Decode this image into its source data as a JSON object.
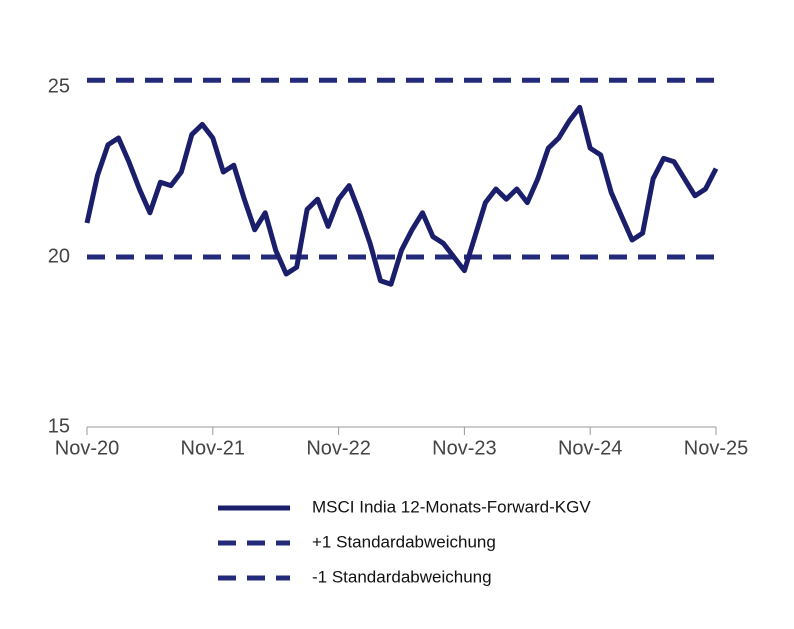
{
  "chart_data": {
    "type": "line",
    "categories": [
      "Nov-20",
      null,
      null,
      null,
      null,
      null,
      null,
      null,
      null,
      null,
      null,
      null,
      "Nov-21",
      null,
      null,
      null,
      null,
      null,
      null,
      null,
      null,
      null,
      null,
      null,
      "Nov-22",
      null,
      null,
      null,
      null,
      null,
      null,
      null,
      null,
      null,
      null,
      null,
      "Nov-23",
      null,
      null,
      null,
      null,
      null,
      null,
      null,
      null,
      null,
      null,
      null,
      "Nov-24",
      null,
      null,
      null,
      null,
      null,
      null,
      null,
      null,
      null,
      null,
      null,
      "Nov-25"
    ],
    "series": [
      {
        "name": "MSCI India 12-Monats-Forward-KGV",
        "color": "#1b1f6b",
        "dashed": false,
        "values": [
          21.0,
          22.4,
          23.3,
          23.5,
          22.8,
          22.0,
          21.3,
          22.2,
          22.1,
          22.5,
          23.6,
          23.9,
          23.5,
          22.5,
          22.7,
          21.7,
          20.8,
          21.3,
          20.2,
          19.5,
          19.7,
          21.4,
          21.7,
          20.9,
          21.7,
          22.1,
          21.3,
          20.4,
          19.3,
          19.2,
          20.2,
          20.8,
          21.3,
          20.6,
          20.4,
          20.0,
          19.6,
          20.6,
          21.6,
          22.0,
          21.7,
          22.0,
          21.6,
          22.3,
          23.2,
          23.5,
          24.0,
          24.4,
          23.2,
          23.0,
          21.9,
          21.2,
          20.5,
          20.7,
          22.3,
          22.9,
          22.8,
          22.3,
          21.8,
          22.0,
          22.6
        ]
      },
      {
        "name": "+1 Standardabweichung",
        "color": "#232a7a",
        "dashed": true,
        "values": [
          25.2,
          25.2,
          25.2,
          25.2,
          25.2,
          25.2,
          25.2,
          25.2,
          25.2,
          25.2,
          25.2,
          25.2,
          25.2,
          25.2,
          25.2,
          25.2,
          25.2,
          25.2,
          25.2,
          25.2,
          25.2,
          25.2,
          25.2,
          25.2,
          25.2,
          25.2,
          25.2,
          25.2,
          25.2,
          25.2,
          25.2,
          25.2,
          25.2,
          25.2,
          25.2,
          25.2,
          25.2,
          25.2,
          25.2,
          25.2,
          25.2,
          25.2,
          25.2,
          25.2,
          25.2,
          25.2,
          25.2,
          25.2,
          25.2,
          25.2,
          25.2,
          25.2,
          25.2,
          25.2,
          25.2,
          25.2,
          25.2,
          25.2,
          25.2,
          25.2,
          25.2
        ]
      },
      {
        "name": "-1 Standardabweichung",
        "color": "#232a7a",
        "dashed": true,
        "values": [
          20.0,
          20.0,
          20.0,
          20.0,
          20.0,
          20.0,
          20.0,
          20.0,
          20.0,
          20.0,
          20.0,
          20.0,
          20.0,
          20.0,
          20.0,
          20.0,
          20.0,
          20.0,
          20.0,
          20.0,
          20.0,
          20.0,
          20.0,
          20.0,
          20.0,
          20.0,
          20.0,
          20.0,
          20.0,
          20.0,
          20.0,
          20.0,
          20.0,
          20.0,
          20.0,
          20.0,
          20.0,
          20.0,
          20.0,
          20.0,
          20.0,
          20.0,
          20.0,
          20.0,
          20.0,
          20.0,
          20.0,
          20.0,
          20.0,
          20.0,
          20.0,
          20.0,
          20.0,
          20.0,
          20.0,
          20.0,
          20.0,
          20.0,
          20.0,
          20.0,
          20.0
        ]
      }
    ],
    "ylim": [
      15,
      26
    ],
    "yticks": [
      15,
      20,
      25
    ],
    "grid": false
  }
}
